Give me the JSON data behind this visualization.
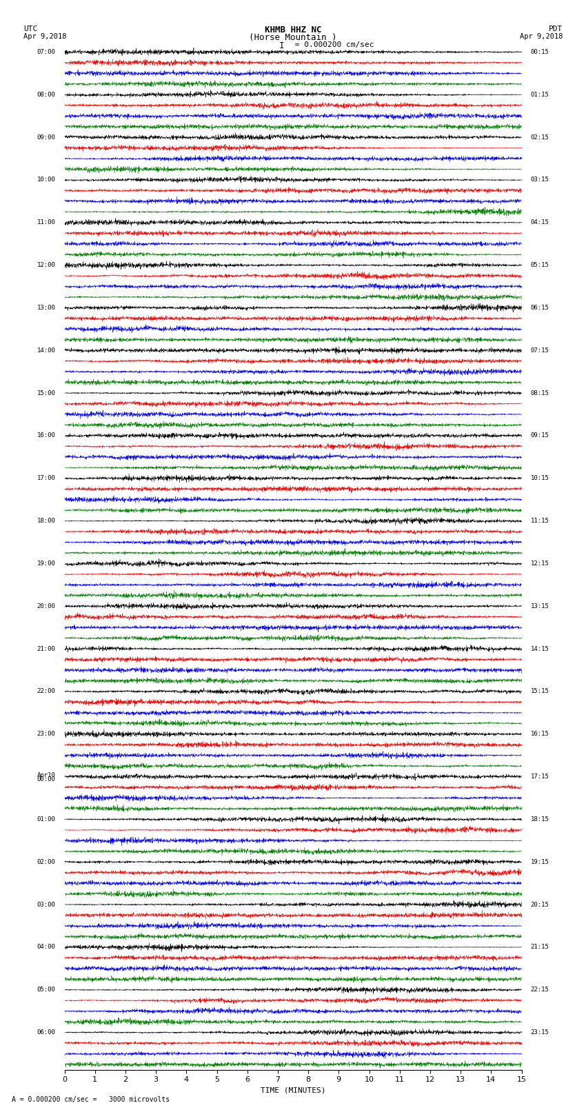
{
  "title_line1": "KHMB HHZ NC",
  "title_line2": "(Horse Mountain )",
  "scale_label": "= 0.000200 cm/sec",
  "scale_label2": "= 0.000200 cm/sec =   3000 microvolts",
  "xlabel": "TIME (MINUTES)",
  "xlim": [
    0,
    15
  ],
  "xticks": [
    0,
    1,
    2,
    3,
    4,
    5,
    6,
    7,
    8,
    9,
    10,
    11,
    12,
    13,
    14,
    15
  ],
  "n_traces": 96,
  "trace_duration_min": 15,
  "colors_cycle": [
    "black",
    "red",
    "blue",
    "green"
  ],
  "utc_labels": [
    "07:00",
    "08:00",
    "09:00",
    "10:00",
    "11:00",
    "12:00",
    "13:00",
    "14:00",
    "15:00",
    "16:00",
    "17:00",
    "18:00",
    "19:00",
    "20:00",
    "21:00",
    "22:00",
    "23:00",
    "Apr10\n00:00",
    "01:00",
    "02:00",
    "03:00",
    "04:00",
    "05:00",
    "06:00"
  ],
  "pdt_labels": [
    "00:15",
    "01:15",
    "02:15",
    "03:15",
    "04:15",
    "05:15",
    "06:15",
    "07:15",
    "08:15",
    "09:15",
    "10:15",
    "11:15",
    "12:15",
    "13:15",
    "14:15",
    "15:15",
    "16:15",
    "17:15",
    "18:15",
    "19:15",
    "20:15",
    "21:15",
    "22:15",
    "23:15"
  ],
  "fig_width": 8.5,
  "fig_height": 16.13,
  "bg_color": "white",
  "dpi": 100,
  "trace_band": 0.48,
  "n_samples": 2000
}
